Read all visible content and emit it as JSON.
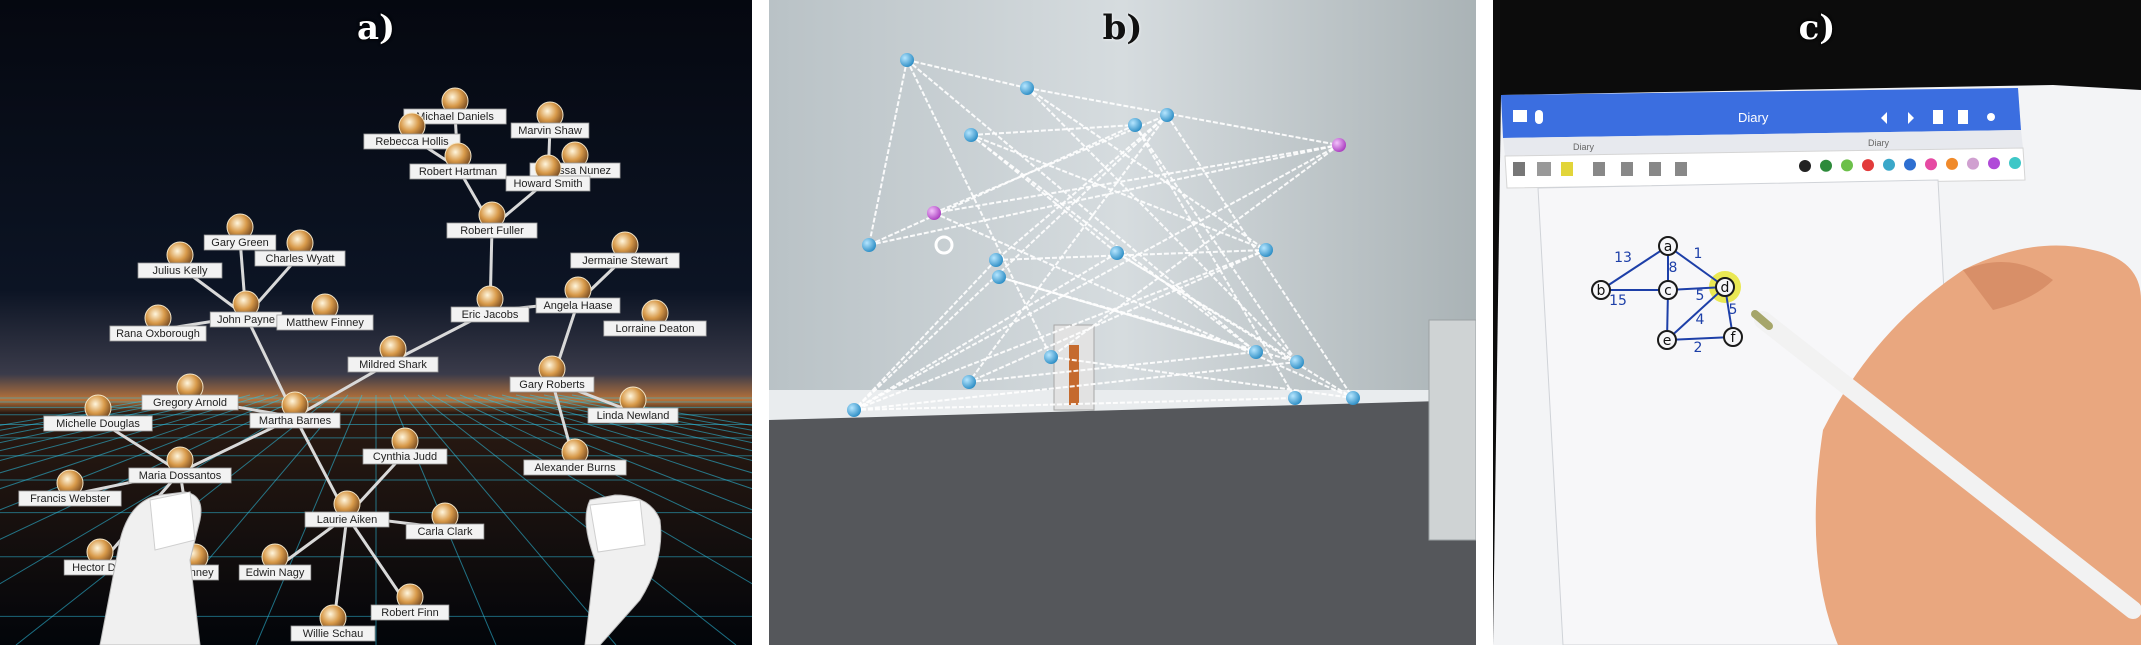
{
  "panels": {
    "a": {
      "letter": "a)",
      "people": [
        "Michael Daniels",
        "Rebecca Hollis",
        "Robert Hartman",
        "Marvin Shaw",
        "Melissa Nunez",
        "Howard Smith",
        "Robert Fuller",
        "Gary Green",
        "Julius Kelly",
        "Charles Wyatt",
        "John Payne",
        "Matthew Finney",
        "Rana Oxborough",
        "Eric Jacobs",
        "Jermaine Stewart",
        "Angela Haase",
        "Lorraine Deaton",
        "Mildred Shark",
        "Gary Roberts",
        "Linda Newland",
        "Gregory Arnold",
        "Martha Barnes",
        "Michelle Douglas",
        "Maria Dossantos",
        "Francis Webster",
        "Alexander Burns",
        "Cynthia Judd",
        "Laurie Aiken",
        "Carla Clark",
        "Hector Doe",
        "Penney",
        "Edwin Nagy",
        "Robert Finn",
        "Willie Schau"
      ],
      "colors": {
        "sky": "#0a0f1c",
        "horizon": "#c9803a",
        "grid": "#2ec4e6",
        "label_bg": "#f2f2f2",
        "link": "#d9d9d9"
      }
    },
    "b": {
      "letter": "b)",
      "colors": {
        "node": "#4fb6e8",
        "highlight_node": "#c85ad6",
        "edge": "#ffffff",
        "wall": "#c8cfd2",
        "floor": "#58595c"
      }
    },
    "c": {
      "letter": "c)",
      "app_title": "Diary",
      "tabs": [
        "Diary",
        "Diary"
      ],
      "graph_nodes": [
        "a",
        "b",
        "c",
        "d",
        "e",
        "f"
      ],
      "edge_weights": [
        "13",
        "1",
        "8",
        "5",
        "15",
        "4",
        "5",
        "2"
      ],
      "palette": [
        "#222222",
        "#2d8a3a",
        "#6cc04a",
        "#e23b3b",
        "#3aa7c9",
        "#2e6fd1",
        "#e64aa3",
        "#f08a2b",
        "#d0a0d0",
        "#b04ad8",
        "#3ec7c7"
      ],
      "colors": {
        "frame": "#111111",
        "toolbar": "#3b6ee0",
        "paper": "#f3f4f6",
        "ink": "#1d3fa8",
        "highlight": "#e6e32b",
        "skin": "#e9a77f"
      }
    }
  }
}
